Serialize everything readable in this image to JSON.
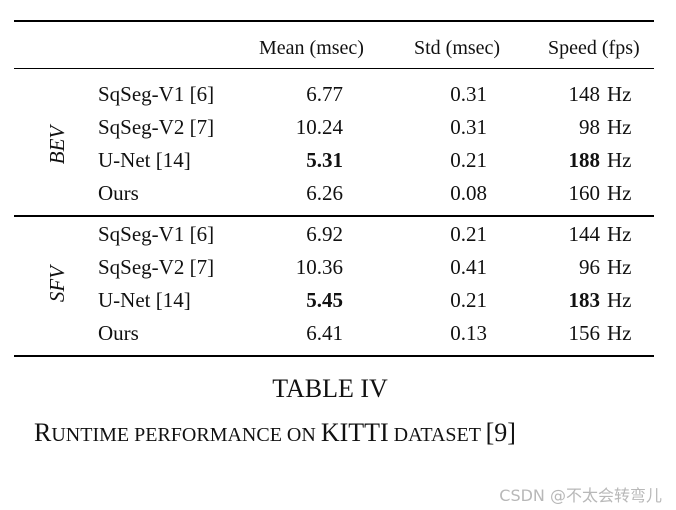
{
  "table": {
    "headers": [
      "",
      "",
      "Mean (msec)",
      "Std (msec)",
      "Speed (fps)"
    ],
    "groups": [
      {
        "label": "BEV",
        "rows": [
          {
            "method": "SqSeg-V1 [6]",
            "mean": "6.77",
            "std": "0.31",
            "speed": "148",
            "unit": "Hz",
            "best_mean": false,
            "best_speed": false
          },
          {
            "method": "SqSeg-V2 [7]",
            "mean": "10.24",
            "std": "0.31",
            "speed": "98",
            "unit": "Hz",
            "best_mean": false,
            "best_speed": false
          },
          {
            "method": "U-Net [14]",
            "mean": "5.31",
            "std": "0.21",
            "speed": "188",
            "unit": "Hz",
            "best_mean": true,
            "best_speed": true
          },
          {
            "method": "Ours",
            "mean": "6.26",
            "std": "0.08",
            "speed": "160",
            "unit": "Hz",
            "best_mean": false,
            "best_speed": false
          }
        ]
      },
      {
        "label": "SFV",
        "rows": [
          {
            "method": "SqSeg-V1 [6]",
            "mean": "6.92",
            "std": "0.21",
            "speed": "144",
            "unit": "Hz",
            "best_mean": false,
            "best_speed": false
          },
          {
            "method": "SqSeg-V2 [7]",
            "mean": "10.36",
            "std": "0.41",
            "speed": "96",
            "unit": "Hz",
            "best_mean": false,
            "best_speed": false
          },
          {
            "method": "U-Net [14]",
            "mean": "5.45",
            "std": "0.21",
            "speed": "183",
            "unit": "Hz",
            "best_mean": true,
            "best_speed": true
          },
          {
            "method": "Ours",
            "mean": "6.41",
            "std": "0.13",
            "speed": "156",
            "unit": "Hz",
            "best_mean": false,
            "best_speed": false
          }
        ]
      }
    ]
  },
  "caption": {
    "number": "TABLE IV",
    "title_parts": [
      {
        "text": "R",
        "small": false
      },
      {
        "text": "UNTIME PERFORMANCE ON ",
        "small": true
      },
      {
        "text": "KITTI",
        "small": false
      },
      {
        "text": " DATASET ",
        "small": true
      },
      {
        "text": "[9]",
        "small": false
      }
    ]
  },
  "watermark": "CSDN @不太会转弯儿"
}
